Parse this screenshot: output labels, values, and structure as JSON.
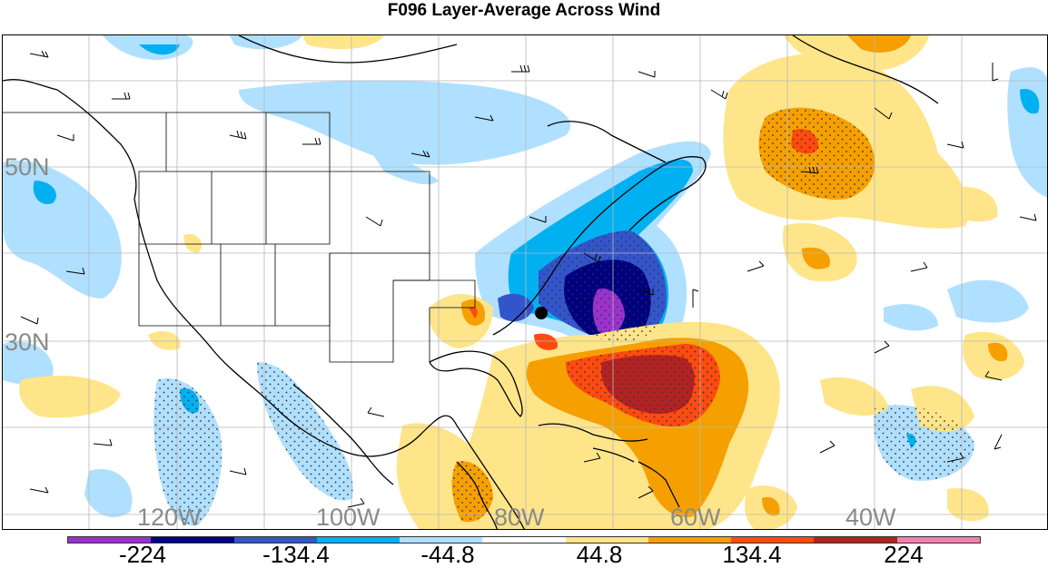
{
  "title": "F096 Layer-Average Across Wind",
  "map": {
    "lat_labels": [
      "50N",
      "30N"
    ],
    "lon_labels": [
      "120W",
      "100W",
      "80W",
      "60W",
      "40W"
    ],
    "marker": "storm-center-dot"
  },
  "colorbar": {
    "colors": [
      "#9933cc",
      "#000080",
      "#3355cc",
      "#00b0f0",
      "#b0e0ff",
      "#ffffff",
      "#ffe58a",
      "#f5a000",
      "#ff4a10",
      "#b22222",
      "#f080b0"
    ],
    "labels": [
      "-224",
      "-134.4",
      "-44.8",
      "44.8",
      "134.4",
      "224"
    ]
  }
}
